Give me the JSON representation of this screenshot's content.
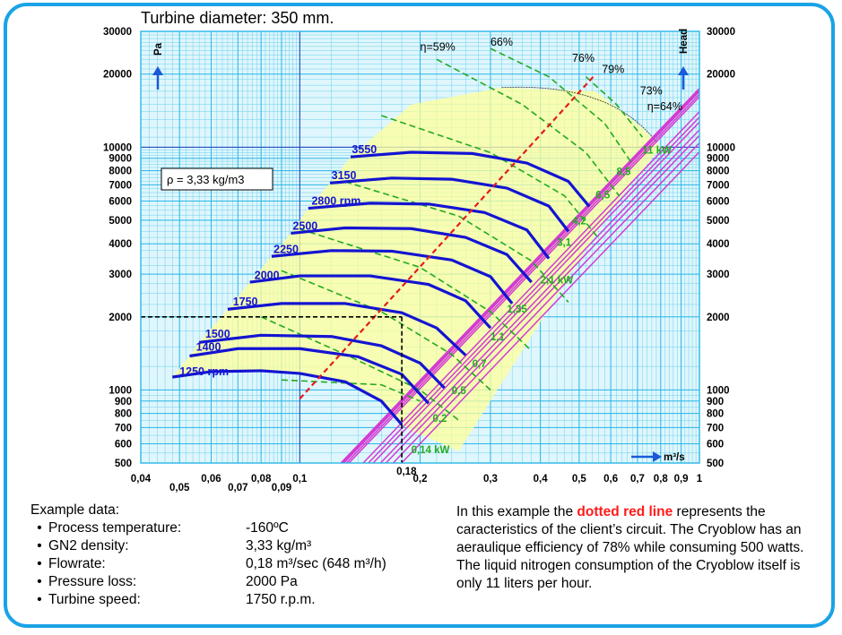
{
  "title": "Turbine diameter: 350 mm.",
  "chart_data": {
    "type": "line",
    "x_scale": "log",
    "y_scale": "log",
    "xlim": [
      0.04,
      1.0
    ],
    "ylim": [
      500,
      30000
    ],
    "x_unit_label": "m³/s",
    "y_left_label": "Pa",
    "y_right_label": "Head",
    "x_ticks": [
      {
        "v": 0.04,
        "t": "0,04"
      },
      {
        "v": 0.05,
        "t": "0,05"
      },
      {
        "v": 0.06,
        "t": "0,06"
      },
      {
        "v": 0.07,
        "t": "0,07"
      },
      {
        "v": 0.08,
        "t": "0,08"
      },
      {
        "v": 0.09,
        "t": "0,09"
      },
      {
        "v": 0.1,
        "t": "0,1"
      },
      {
        "v": 0.2,
        "t": "0,2"
      },
      {
        "v": 0.3,
        "t": "0,3"
      },
      {
        "v": 0.4,
        "t": "0,4"
      },
      {
        "v": 0.5,
        "t": "0,5"
      },
      {
        "v": 0.6,
        "t": "0,6"
      },
      {
        "v": 0.7,
        "t": "0,7"
      },
      {
        "v": 0.8,
        "t": "0,8"
      },
      {
        "v": 0.9,
        "t": "0,9"
      },
      {
        "v": 1.0,
        "t": "1"
      }
    ],
    "y_ticks": [
      {
        "v": 500,
        "t": "500"
      },
      {
        "v": 600,
        "t": "600"
      },
      {
        "v": 700,
        "t": "700"
      },
      {
        "v": 800,
        "t": "800"
      },
      {
        "v": 900,
        "t": "900"
      },
      {
        "v": 1000,
        "t": "1000"
      },
      {
        "v": 2000,
        "t": "2000"
      },
      {
        "v": 3000,
        "t": "3000"
      },
      {
        "v": 4000,
        "t": "4000"
      },
      {
        "v": 5000,
        "t": "5000"
      },
      {
        "v": 6000,
        "t": "6000"
      },
      {
        "v": 7000,
        "t": "7000"
      },
      {
        "v": 8000,
        "t": "8000"
      },
      {
        "v": 9000,
        "t": "9000"
      },
      {
        "v": 10000,
        "t": "10000"
      },
      {
        "v": 20000,
        "t": "20000"
      },
      {
        "v": 30000,
        "t": "30000"
      }
    ],
    "density_label": "ρ = 3,33 kg/m3",
    "operating_point": {
      "x": 0.18,
      "y": 2000,
      "x_label": "0,18"
    },
    "speed_curves": [
      {
        "label": "1250 rpm",
        "label_at": [
          0.05,
          1150
        ],
        "points": [
          [
            0.048,
            1130
          ],
          [
            0.06,
            1190
          ],
          [
            0.08,
            1200
          ],
          [
            0.1,
            1170
          ],
          [
            0.13,
            1080
          ],
          [
            0.16,
            900
          ],
          [
            0.18,
            720
          ]
        ]
      },
      {
        "label": "1400",
        "label_at": [
          0.055,
          1450
        ],
        "points": [
          [
            0.053,
            1380
          ],
          [
            0.07,
            1480
          ],
          [
            0.1,
            1480
          ],
          [
            0.14,
            1370
          ],
          [
            0.18,
            1160
          ],
          [
            0.21,
            880
          ]
        ]
      },
      {
        "label": "1500",
        "label_at": [
          0.058,
          1640
        ],
        "points": [
          [
            0.056,
            1570
          ],
          [
            0.08,
            1680
          ],
          [
            0.12,
            1660
          ],
          [
            0.16,
            1520
          ],
          [
            0.2,
            1290
          ],
          [
            0.23,
            1020
          ]
        ]
      },
      {
        "label": "1750",
        "label_at": [
          0.068,
          2230
        ],
        "points": [
          [
            0.066,
            2150
          ],
          [
            0.09,
            2270
          ],
          [
            0.13,
            2270
          ],
          [
            0.18,
            2080
          ],
          [
            0.22,
            1800
          ],
          [
            0.26,
            1390
          ]
        ]
      },
      {
        "label": "2000",
        "label_at": [
          0.077,
          2870
        ],
        "points": [
          [
            0.075,
            2780
          ],
          [
            0.1,
            2950
          ],
          [
            0.15,
            2950
          ],
          [
            0.21,
            2720
          ],
          [
            0.26,
            2330
          ],
          [
            0.3,
            1800
          ]
        ]
      },
      {
        "label": "2250",
        "label_at": [
          0.086,
          3670
        ],
        "points": [
          [
            0.085,
            3550
          ],
          [
            0.12,
            3750
          ],
          [
            0.17,
            3730
          ],
          [
            0.24,
            3430
          ],
          [
            0.3,
            2930
          ],
          [
            0.34,
            2270
          ]
        ]
      },
      {
        "label": "2500",
        "label_at": [
          0.096,
          4570
        ],
        "points": [
          [
            0.095,
            4420
          ],
          [
            0.13,
            4650
          ],
          [
            0.19,
            4620
          ],
          [
            0.26,
            4250
          ],
          [
            0.33,
            3610
          ],
          [
            0.38,
            2780
          ]
        ]
      },
      {
        "label": "2800 rpm",
        "label_at": [
          0.107,
          5800
        ],
        "points": [
          [
            0.105,
            5600
          ],
          [
            0.15,
            5880
          ],
          [
            0.21,
            5830
          ],
          [
            0.29,
            5380
          ],
          [
            0.37,
            4560
          ],
          [
            0.42,
            3480
          ]
        ]
      },
      {
        "label": "3150",
        "label_at": [
          0.12,
          7380
        ],
        "points": [
          [
            0.119,
            7120
          ],
          [
            0.17,
            7460
          ],
          [
            0.24,
            7380
          ],
          [
            0.33,
            6780
          ],
          [
            0.42,
            5720
          ],
          [
            0.47,
            4500
          ]
        ]
      },
      {
        "label": "3550",
        "label_at": [
          0.135,
          9450
        ],
        "points": [
          [
            0.134,
            9120
          ],
          [
            0.19,
            9530
          ],
          [
            0.27,
            9420
          ],
          [
            0.37,
            8600
          ],
          [
            0.47,
            7230
          ],
          [
            0.53,
            5700
          ]
        ]
      }
    ],
    "power_lines": [
      {
        "label": "0,14 kW",
        "label_at": [
          0.19,
          550
        ]
      },
      {
        "label": "0,2",
        "label_at": [
          0.215,
          740
        ]
      },
      {
        "label": "0,5",
        "label_at": [
          0.24,
          960
        ]
      },
      {
        "label": "0,7",
        "label_at": [
          0.27,
          1240
        ]
      },
      {
        "label": "1,1",
        "label_at": [
          0.3,
          1600
        ]
      },
      {
        "label": "1,35",
        "label_at": [
          0.33,
          2080
        ]
      },
      {
        "label": "2,1 kW",
        "label_at": [
          0.4,
          2750
        ]
      },
      {
        "label": "3,1",
        "label_at": [
          0.44,
          3930
        ]
      },
      {
        "label": "4,2",
        "label_at": [
          0.48,
          4800
        ]
      },
      {
        "label": "6,5",
        "label_at": [
          0.55,
          6150
        ]
      },
      {
        "label": "8,5",
        "label_at": [
          0.62,
          7680
        ]
      },
      {
        "label": "11 kW",
        "label_at": [
          0.72,
          9400
        ]
      }
    ],
    "efficiency_labels": [
      {
        "label": "η=59%",
        "at": [
          0.2,
          25000
        ]
      },
      {
        "label": "66%",
        "at": [
          0.3,
          26200
        ]
      },
      {
        "label": "76%",
        "at": [
          0.48,
          22500
        ]
      },
      {
        "label": "79%",
        "at": [
          0.57,
          20200
        ]
      },
      {
        "label": "73%",
        "at": [
          0.71,
          16500
        ]
      },
      {
        "label": "η=64%",
        "at": [
          0.74,
          14200
        ]
      }
    ],
    "system_curve": {
      "label": "dotted red line",
      "points": [
        [
          0.1,
          920
        ],
        [
          0.55,
          20000
        ]
      ]
    }
  },
  "example": {
    "heading": "Example data:",
    "rows": [
      {
        "label": "Process temperature:",
        "value": "-160ºC"
      },
      {
        "label": "GN2 density:",
        "value": "3,33 kg/m³"
      },
      {
        "label": "Flowrate:",
        "value": "0,18 m³/sec (648 m³/h)"
      },
      {
        "label": "Pressure loss:",
        "value": "2000 Pa"
      },
      {
        "label": "Turbine speed:",
        "value": "1750 r.p.m."
      }
    ]
  },
  "explanation": {
    "intro": "In this example the ",
    "highlight": "dotted red line",
    "rest": "represents the caracteristics of the client’s circuit. The Cryoblow has an aeraulique efficiency of 78% while consuming 500 watts. The liquid nitrogen consumption of the Cryoblow itself is only 11 liters per hour."
  },
  "colors": {
    "frame": "#1aa3e6",
    "grid": "#6cd0ee",
    "speed_curve": "#1414d2",
    "power_line": "#d33ad3",
    "efficiency_curve": "#22aa22",
    "system_curve": "#e41c1c",
    "fill": "#ffff99"
  }
}
